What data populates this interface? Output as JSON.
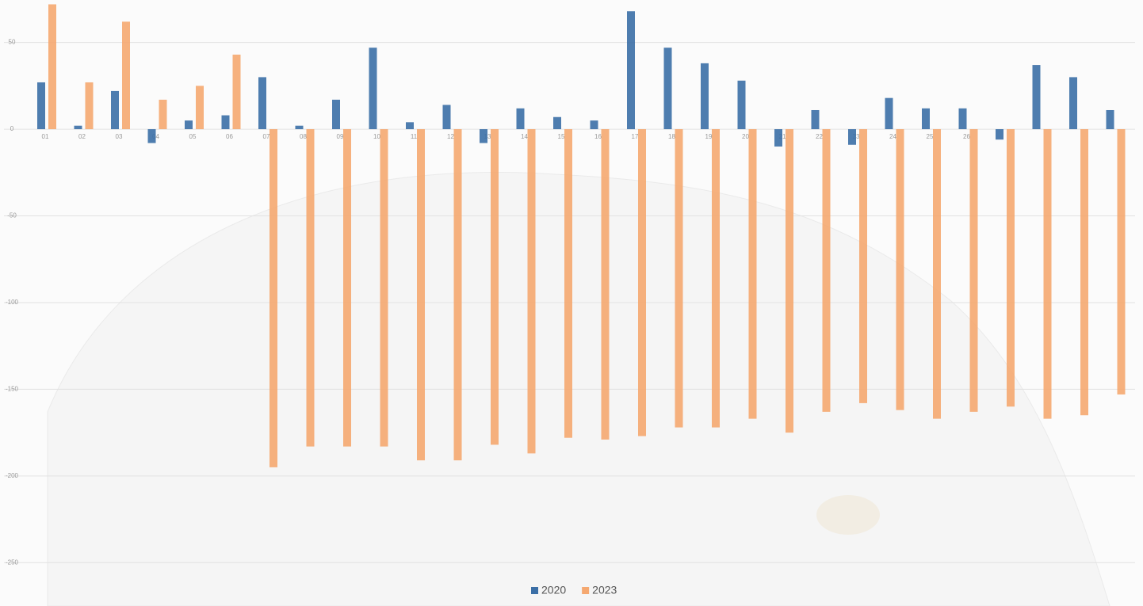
{
  "chart_data": {
    "type": "bar",
    "categories": [
      "01",
      "02",
      "03",
      "04",
      "05",
      "06",
      "07",
      "08",
      "09",
      "10",
      "11",
      "12",
      "13",
      "14",
      "15",
      "16",
      "17",
      "18",
      "19",
      "20",
      "21",
      "22",
      "23",
      "24",
      "25",
      "26",
      null,
      null,
      null,
      null
    ],
    "series": [
      {
        "name": "2020",
        "color": "#3b6fa6",
        "values": [
          27,
          2,
          22,
          -8,
          5,
          8,
          30,
          2,
          17,
          47,
          4,
          14,
          -8,
          12,
          7,
          5,
          68,
          47,
          38,
          28,
          -10,
          11,
          -9,
          18,
          12,
          12,
          -6,
          37,
          30,
          11
        ]
      },
      {
        "name": "2023",
        "color": "#f5a870",
        "values": [
          72,
          27,
          62,
          17,
          25,
          43,
          -195,
          -183,
          -183,
          -183,
          -191,
          -191,
          -182,
          -187,
          -178,
          -179,
          -177,
          -172,
          -172,
          -167,
          -175,
          -163,
          -158,
          -162,
          -167,
          -163,
          -160,
          -167,
          -165,
          -153
        ]
      }
    ],
    "ylim": [
      -275,
      74.5
    ],
    "yticks": [
      50,
      0,
      -50,
      -100,
      -150,
      -200,
      -250
    ],
    "grid": true,
    "legend": "bottom"
  }
}
